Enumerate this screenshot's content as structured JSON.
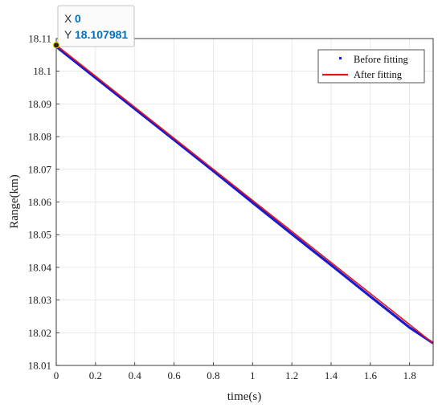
{
  "chart_data": {
    "type": "line",
    "xlabel": "time(s)",
    "ylabel": "Range(km)",
    "xlim": [
      0,
      1.92
    ],
    "ylim": [
      18.01,
      18.11
    ],
    "xticks": [
      "0",
      "0.2",
      "0.4",
      "0.6",
      "0.8",
      "1",
      "1.2",
      "1.4",
      "1.6",
      "1.8"
    ],
    "yticks": [
      "18.01",
      "18.02",
      "18.03",
      "18.04",
      "18.05",
      "18.06",
      "18.07",
      "18.08",
      "18.09",
      "18.1",
      "18.11"
    ],
    "grid": true,
    "legend_position": "top-right",
    "series": [
      {
        "name": "Before fitting",
        "style": "dots",
        "color": "#1a1acc",
        "x": [
          0,
          0.2,
          0.4,
          0.6,
          0.8,
          1.0,
          1.2,
          1.4,
          1.6,
          1.8,
          1.92
        ],
        "y": [
          18.1075,
          18.098,
          18.0885,
          18.079,
          18.0695,
          18.0598,
          18.0502,
          18.0407,
          18.0311,
          18.0216,
          18.0168
        ]
      },
      {
        "name": "After fitting",
        "style": "line",
        "color": "#e8141b",
        "x": [
          0,
          1.92
        ],
        "y": [
          18.108,
          18.0168
        ]
      }
    ],
    "datatip": {
      "x_label": "X",
      "x_value": "0",
      "y_label": "Y",
      "y_value": "18.107981",
      "point": [
        0,
        18.107981
      ]
    }
  }
}
